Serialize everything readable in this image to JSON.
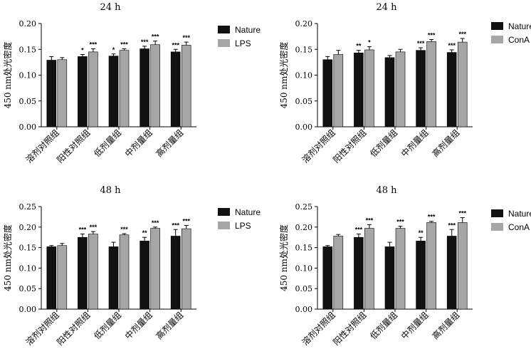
{
  "colors": {
    "nature": "#111111",
    "treatment": "#a6a6a6",
    "axis": "#000000"
  },
  "chart_data": [
    {
      "type": "bar",
      "title": "24 h",
      "ylabel": "450 nm处光密度",
      "ylim": [
        0,
        0.2
      ],
      "yticks": [
        "0.00",
        "0.05",
        "0.10",
        "0.15",
        "0.20"
      ],
      "categories": [
        "溶剂对照组",
        "阳性对照组",
        "低剂量组",
        "中剂量组",
        "高剂量组"
      ],
      "series": [
        {
          "name": "Nature",
          "values": [
            0.129,
            0.136,
            0.137,
            0.151,
            0.145
          ],
          "errors": [
            0.007,
            0.004,
            0.004,
            0.005,
            0.005
          ],
          "stars": [
            "",
            "*",
            "*",
            "***",
            "***"
          ]
        },
        {
          "name": "LPS",
          "values": [
            0.13,
            0.145,
            0.148,
            0.159,
            0.158
          ],
          "errors": [
            0.004,
            0.006,
            0.003,
            0.007,
            0.006
          ],
          "stars": [
            "",
            "***",
            "***",
            "***",
            "***"
          ]
        }
      ]
    },
    {
      "type": "bar",
      "title": "24 h",
      "ylabel": "450 nm处光密度",
      "ylim": [
        0,
        0.2
      ],
      "yticks": [
        "0.00",
        "0.05",
        "0.10",
        "0.15",
        "0.20"
      ],
      "categories": [
        "溶剂对照组",
        "阳性对照组",
        "低剂量组",
        "中剂量组",
        "高剂量组"
      ],
      "series": [
        {
          "name": "Nature",
          "values": [
            0.13,
            0.143,
            0.134,
            0.148,
            0.144
          ],
          "errors": [
            0.006,
            0.005,
            0.004,
            0.005,
            0.005
          ],
          "stars": [
            "",
            "**",
            "",
            "***",
            "***"
          ]
        },
        {
          "name": "ConA",
          "values": [
            0.14,
            0.149,
            0.145,
            0.165,
            0.164
          ],
          "errors": [
            0.008,
            0.006,
            0.005,
            0.004,
            0.007
          ],
          "stars": [
            "",
            "*",
            "",
            "***",
            "***"
          ]
        }
      ]
    },
    {
      "type": "bar",
      "title": "48 h",
      "ylabel": "450 nm处光密度",
      "ylim": [
        0,
        0.25
      ],
      "yticks": [
        "0.00",
        "0.05",
        "0.10",
        "0.15",
        "0.20",
        "0.25"
      ],
      "categories": [
        "溶剂对照组",
        "阳性对照组",
        "低剂量组",
        "中剂量组",
        "高剂量组"
      ],
      "series": [
        {
          "name": "Nature",
          "values": [
            0.152,
            0.175,
            0.152,
            0.166,
            0.178
          ],
          "errors": [
            0.003,
            0.008,
            0.011,
            0.009,
            0.016
          ],
          "stars": [
            "",
            "***",
            "",
            "**",
            "***"
          ]
        },
        {
          "name": "LPS",
          "values": [
            0.155,
            0.183,
            0.181,
            0.197,
            0.196
          ],
          "errors": [
            0.005,
            0.006,
            0.003,
            0.003,
            0.008
          ],
          "stars": [
            "",
            "***",
            "***",
            "***",
            "***"
          ]
        }
      ]
    },
    {
      "type": "bar",
      "title": "48 h",
      "ylabel": "450 nm处光密度",
      "ylim": [
        0,
        0.25
      ],
      "yticks": [
        "0.00",
        "0.05",
        "0.10",
        "0.15",
        "0.20",
        "0.25"
      ],
      "categories": [
        "溶剂对照组",
        "阳性对照组",
        "低剂量组",
        "中剂量组",
        "高剂量组"
      ],
      "series": [
        {
          "name": "Nature",
          "values": [
            0.152,
            0.175,
            0.152,
            0.166,
            0.178
          ],
          "errors": [
            0.003,
            0.008,
            0.011,
            0.009,
            0.016
          ],
          "stars": [
            "",
            "***",
            "",
            "**",
            "***"
          ]
        },
        {
          "name": "ConA",
          "values": [
            0.178,
            0.197,
            0.197,
            0.211,
            0.211
          ],
          "errors": [
            0.004,
            0.009,
            0.005,
            0.003,
            0.012
          ],
          "stars": [
            "",
            "***",
            "***",
            "***",
            "***"
          ]
        }
      ]
    }
  ]
}
